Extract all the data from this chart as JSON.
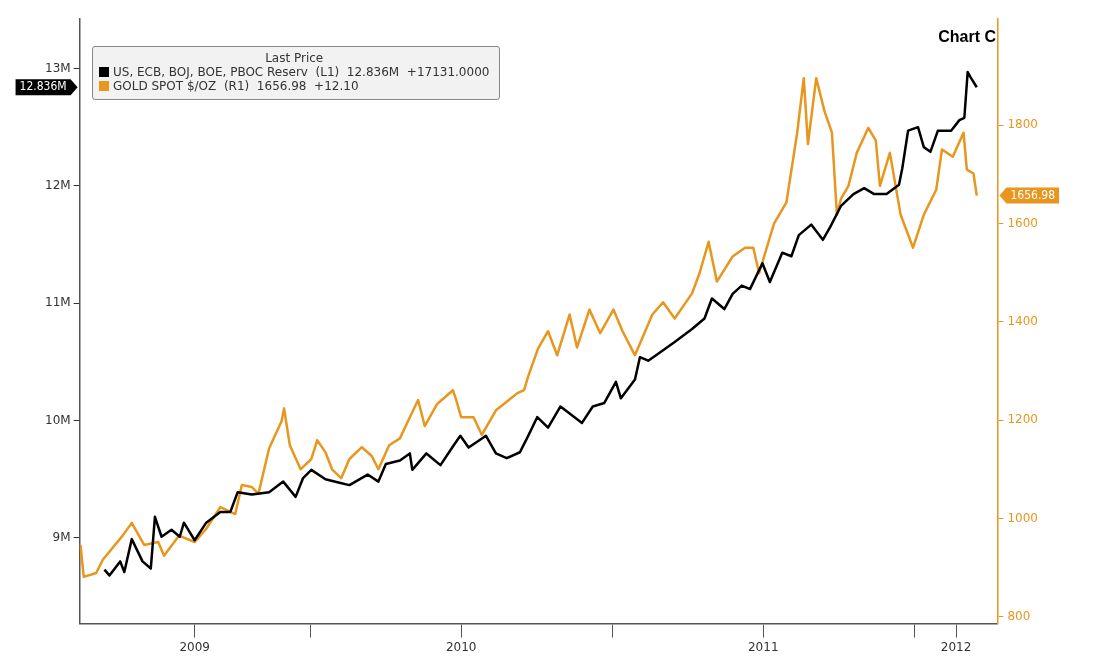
{
  "chart_data": {
    "type": "line",
    "title": "Chart C",
    "legend_title": "Last Price",
    "legend": "top left",
    "grid": false,
    "marker": "none",
    "line_style": "solid",
    "xlim": [
      "2009-03-28",
      "2012-04-10"
    ],
    "xticks": [
      {
        "value": "2009-08-14",
        "label": "2009"
      },
      {
        "value": "2010-01-01",
        "label": null
      },
      {
        "value": "2010-07-02",
        "label": "2010"
      },
      {
        "value": "2011-01-01",
        "label": null
      },
      {
        "value": "2011-07-02",
        "label": "2011"
      },
      {
        "value": "2012-01-01",
        "label": null
      },
      {
        "value": "2012-02-20",
        "label": "2012"
      }
    ],
    "ylim": [
      8.27,
      13.42
    ],
    "yticks": [
      {
        "value": 9,
        "label": "9M"
      },
      {
        "value": 10,
        "label": "10M"
      },
      {
        "value": 11,
        "label": "11M"
      },
      {
        "value": 12,
        "label": "12M"
      },
      {
        "value": 13,
        "label": "13M"
      }
    ],
    "y2lim": [
      786,
      2016
    ],
    "y2ticks": [
      800,
      1000,
      1200,
      1400,
      1600,
      1800
    ],
    "annotations": [
      "12.836M",
      "1656.98"
    ],
    "series": [
      {
        "name": "US, ECB, BOJ, BOE, PBOC Reserv  (L1)  12.836M  +17131.0000",
        "color": "#000000",
        "axis": "y",
        "x": [
          "2009-04-27",
          "2009-05-03",
          "2009-05-16",
          "2009-05-21",
          "2009-05-30",
          "2009-06-12",
          "2009-06-22",
          "2009-06-27",
          "2009-07-05",
          "2009-07-17",
          "2009-07-27",
          "2009-08-01",
          "2009-08-14",
          "2009-08-28",
          "2009-09-14",
          "2009-09-26",
          "2009-10-05",
          "2009-10-22",
          "2009-11-12",
          "2009-11-29",
          "2009-12-14",
          "2009-12-23",
          "2010-01-02",
          "2010-01-19",
          "2010-02-05",
          "2010-02-17",
          "2010-03-11",
          "2010-03-24",
          "2010-04-02",
          "2010-04-19",
          "2010-05-01",
          "2010-05-04",
          "2010-05-21",
          "2010-06-07",
          "2010-06-23",
          "2010-07-01",
          "2010-07-11",
          "2010-08-01",
          "2010-08-13",
          "2010-08-26",
          "2010-09-11",
          "2010-09-21",
          "2010-10-02",
          "2010-10-15",
          "2010-10-30",
          "2010-11-25",
          "2010-12-08",
          "2010-12-22",
          "2011-01-05",
          "2011-01-11",
          "2011-01-28",
          "2011-02-03",
          "2011-02-13",
          "2011-03-03",
          "2011-03-17",
          "2011-04-07",
          "2011-04-22",
          "2011-05-01",
          "2011-05-16",
          "2011-05-26",
          "2011-06-06",
          "2011-06-16",
          "2011-07-01",
          "2011-07-10",
          "2011-07-25",
          "2011-08-05",
          "2011-08-14",
          "2011-08-29",
          "2011-09-12",
          "2011-09-21",
          "2011-10-04",
          "2011-10-19",
          "2011-11-01",
          "2011-11-13",
          "2011-11-28",
          "2011-12-13",
          "2011-12-17",
          "2011-12-24",
          "2012-01-05",
          "2012-01-12",
          "2012-01-20",
          "2012-01-29",
          "2012-02-14",
          "2012-02-24",
          "2012-03-01",
          "2012-03-05",
          "2012-03-08",
          "2012-03-16"
        ],
        "values": [
          8.73,
          8.68,
          8.8,
          8.71,
          8.99,
          8.8,
          8.74,
          9.18,
          9.01,
          9.07,
          9.01,
          9.13,
          8.98,
          9.13,
          9.22,
          9.22,
          9.39,
          9.37,
          9.39,
          9.48,
          9.35,
          9.51,
          9.58,
          9.5,
          9.47,
          9.45,
          9.54,
          9.48,
          9.63,
          9.66,
          9.72,
          9.58,
          9.72,
          9.62,
          9.79,
          9.87,
          9.77,
          9.87,
          9.72,
          9.68,
          9.73,
          9.87,
          10.03,
          9.94,
          10.12,
          9.98,
          10.12,
          10.15,
          10.33,
          10.19,
          10.35,
          10.54,
          10.51,
          10.6,
          10.67,
          10.78,
          10.87,
          11.04,
          10.95,
          11.08,
          11.15,
          11.12,
          11.34,
          11.18,
          11.43,
          11.4,
          11.58,
          11.67,
          11.54,
          11.65,
          11.83,
          11.93,
          11.98,
          11.93,
          11.93,
          12.01,
          12.15,
          12.47,
          12.5,
          12.33,
          12.29,
          12.47,
          12.47,
          12.56,
          12.58,
          12.97,
          12.93,
          12.84
        ]
      },
      {
        "name": "GOLD SPOT $/OZ  (R1)  1656.98  +12.10",
        "color": "#e8961e",
        "axis": "y2",
        "x": [
          "2009-03-29",
          "2009-04-02",
          "2009-04-17",
          "2009-04-25",
          "2009-05-19",
          "2009-05-30",
          "2009-06-14",
          "2009-07-01",
          "2009-07-08",
          "2009-07-26",
          "2009-08-14",
          "2009-08-28",
          "2009-09-14",
          "2009-10-02",
          "2009-10-10",
          "2009-10-22",
          "2009-10-30",
          "2009-11-12",
          "2009-11-27",
          "2009-11-30",
          "2009-12-07",
          "2009-12-20",
          "2010-01-02",
          "2010-01-09",
          "2010-01-19",
          "2010-01-27",
          "2010-02-07",
          "2010-02-17",
          "2010-03-04",
          "2010-03-16",
          "2010-03-24",
          "2010-04-06",
          "2010-04-19",
          "2010-05-01",
          "2010-05-11",
          "2010-05-19",
          "2010-06-03",
          "2010-06-22",
          "2010-06-26",
          "2010-07-02",
          "2010-07-17",
          "2010-07-27",
          "2010-08-13",
          "2010-09-08",
          "2010-09-16",
          "2010-09-21",
          "2010-10-03",
          "2010-10-15",
          "2010-10-26",
          "2010-11-10",
          "2010-11-19",
          "2010-12-04",
          "2010-12-17",
          "2011-01-02",
          "2011-01-13",
          "2011-01-28",
          "2011-02-18",
          "2011-03-03",
          "2011-03-17",
          "2011-04-07",
          "2011-04-16",
          "2011-04-27",
          "2011-05-07",
          "2011-05-26",
          "2011-06-10",
          "2011-06-20",
          "2011-06-27",
          "2011-07-15",
          "2011-07-30",
          "2011-08-12",
          "2011-08-20",
          "2011-08-25",
          "2011-09-04",
          "2011-09-14",
          "2011-09-23",
          "2011-09-29",
          "2011-10-04",
          "2011-10-13",
          "2011-10-23",
          "2011-11-06",
          "2011-11-15",
          "2011-11-20",
          "2011-12-02",
          "2011-12-15",
          "2011-12-30",
          "2012-01-12",
          "2012-01-27",
          "2012-02-03",
          "2012-02-16",
          "2012-02-29",
          "2012-03-04",
          "2012-03-12",
          "2012-03-16"
        ],
        "values": [
          946,
          881,
          889,
          916,
          965,
          991,
          946,
          952,
          924,
          965,
          952,
          979,
          1023,
          1009,
          1068,
          1064,
          1050,
          1143,
          1198,
          1224,
          1149,
          1100,
          1121,
          1159,
          1135,
          1100,
          1082,
          1121,
          1145,
          1127,
          1100,
          1149,
          1163,
          1206,
          1241,
          1188,
          1233,
          1261,
          1241,
          1206,
          1206,
          1170,
          1220,
          1255,
          1261,
          1289,
          1346,
          1381,
          1332,
          1415,
          1348,
          1425,
          1377,
          1425,
          1381,
          1332,
          1415,
          1440,
          1407,
          1458,
          1499,
          1563,
          1482,
          1533,
          1551,
          1551,
          1499,
          1600,
          1643,
          1785,
          1896,
          1762,
          1896,
          1829,
          1785,
          1618,
          1651,
          1677,
          1744,
          1795,
          1769,
          1677,
          1744,
          1618,
          1551,
          1618,
          1669,
          1751,
          1736,
          1785,
          1710,
          1702,
          1657
        ]
      }
    ]
  }
}
